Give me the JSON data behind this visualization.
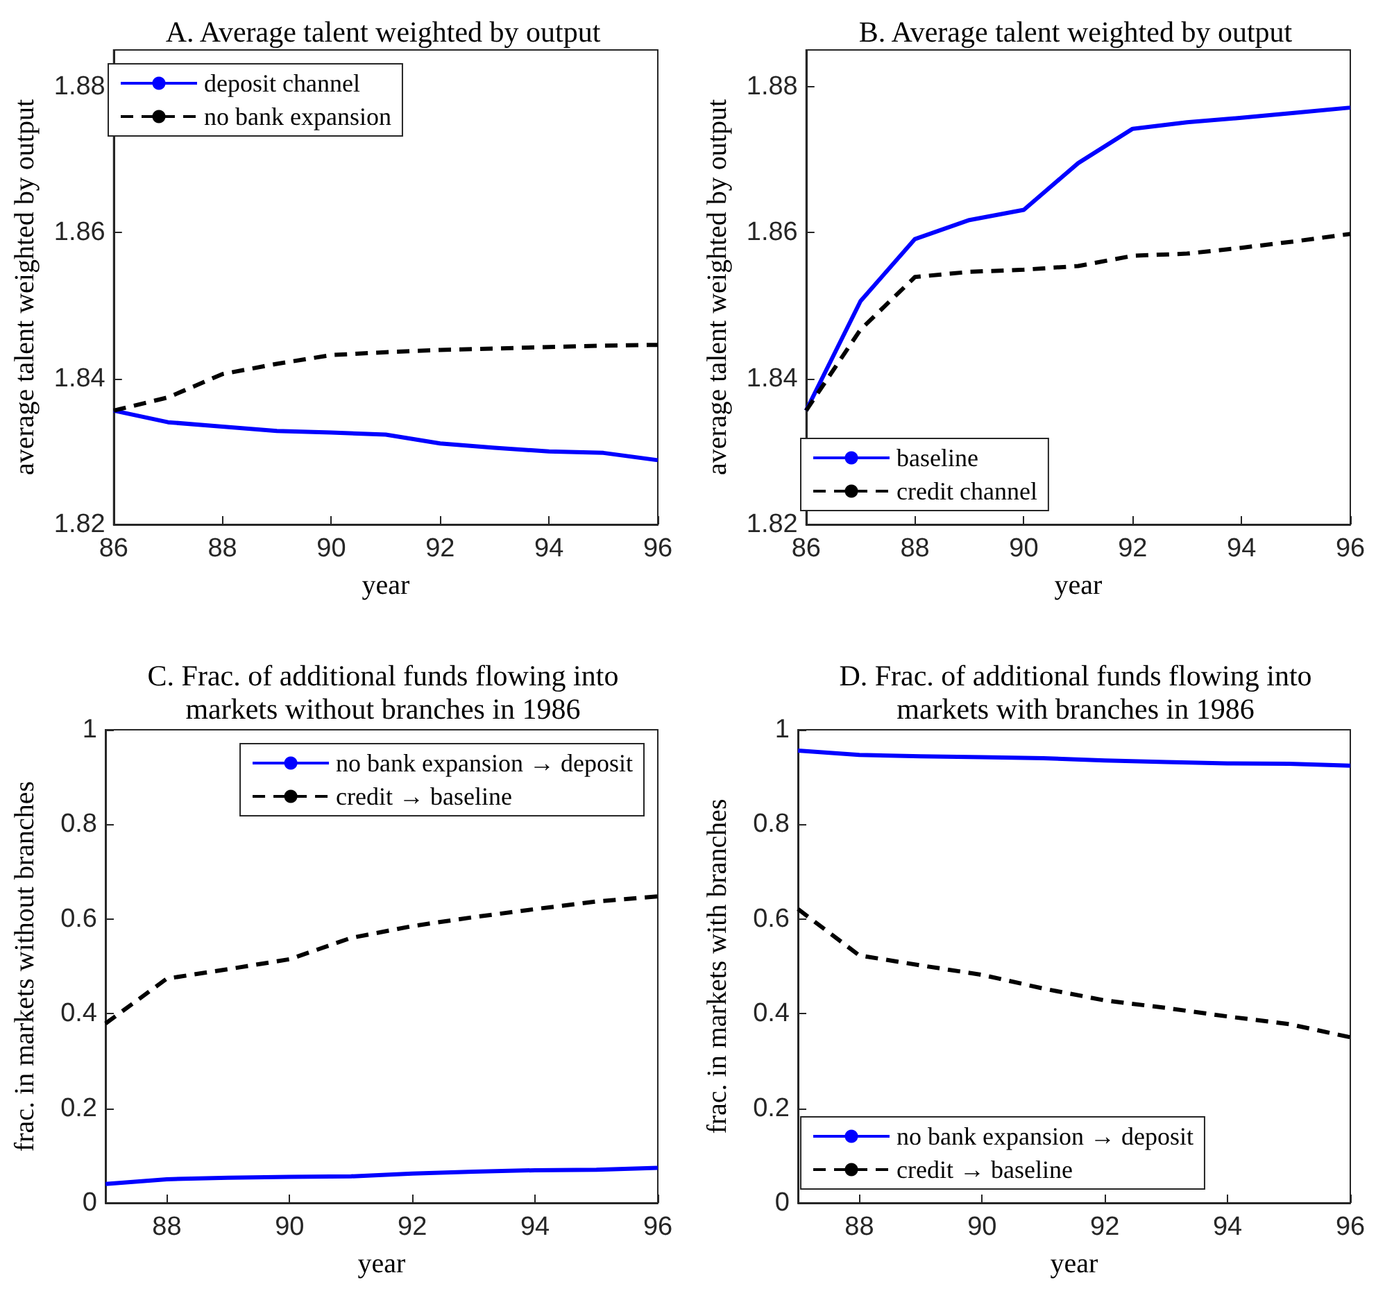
{
  "chart_data": [
    {
      "type": "line",
      "title": "A. Average talent weighted by output",
      "xlabel": "year",
      "ylabel": "average talent weighted by output",
      "x": [
        86,
        87,
        88,
        89,
        90,
        91,
        92,
        93,
        94,
        95,
        96
      ],
      "xlim": [
        86,
        96
      ],
      "xticks": [
        86,
        88,
        90,
        92,
        94,
        96
      ],
      "ylim": [
        1.82,
        1.885
      ],
      "yticks": [
        1.82,
        1.84,
        1.86,
        1.88
      ],
      "grid": false,
      "legend": "top left",
      "marker": "none",
      "series": [
        {
          "name": "deposit channel",
          "color": "#0000ff",
          "line_style": "solid",
          "values": [
            1.8356,
            1.834,
            1.8334,
            1.8328,
            1.8326,
            1.8323,
            1.8311,
            1.8305,
            1.83,
            1.8298,
            1.8288
          ]
        },
        {
          "name": "no bank expansion",
          "color": "#000000",
          "line_style": "dashed",
          "values": [
            1.8356,
            1.8374,
            1.8406,
            1.842,
            1.8432,
            1.8436,
            1.8439,
            1.8441,
            1.8443,
            1.8445,
            1.8446
          ]
        }
      ]
    },
    {
      "type": "line",
      "title": "B. Average talent weighted by output",
      "xlabel": "year",
      "ylabel": "average talent weighted by output",
      "x": [
        86,
        87,
        88,
        89,
        90,
        91,
        92,
        93,
        94,
        95,
        96
      ],
      "xlim": [
        86,
        96
      ],
      "xticks": [
        86,
        88,
        90,
        92,
        94,
        96
      ],
      "ylim": [
        1.82,
        1.885
      ],
      "yticks": [
        1.82,
        1.84,
        1.86,
        1.88
      ],
      "grid": false,
      "legend": "bottom left",
      "marker": "none",
      "series": [
        {
          "name": "baseline",
          "color": "#0000ff",
          "line_style": "solid",
          "values": [
            1.8356,
            1.8506,
            1.8591,
            1.8617,
            1.8631,
            1.8695,
            1.8742,
            1.8751,
            1.8757,
            1.8764,
            1.8771
          ]
        },
        {
          "name": "credit channel",
          "color": "#000000",
          "line_style": "dashed",
          "values": [
            1.8356,
            1.8467,
            1.8539,
            1.8546,
            1.8549,
            1.8554,
            1.8568,
            1.8571,
            1.8579,
            1.8588,
            1.8598
          ]
        }
      ]
    },
    {
      "type": "line",
      "title": "C. Frac. of additional funds flowing into\nmarkets without branches in 1986",
      "xlabel": "year",
      "ylabel": "frac. in markets without branches",
      "x": [
        87,
        88,
        89,
        90,
        91,
        92,
        93,
        94,
        95,
        96
      ],
      "xlim": [
        87,
        96
      ],
      "xticks": [
        88,
        90,
        92,
        94,
        96
      ],
      "ylim": [
        0,
        1
      ],
      "yticks": [
        0,
        0.2,
        0.4,
        0.6,
        0.8,
        1
      ],
      "grid": false,
      "legend": "top right",
      "marker": "none",
      "series": [
        {
          "name": "no bank expansion → deposit",
          "color": "#0000ff",
          "line_style": "solid",
          "values": [
            0.04,
            0.05,
            0.053,
            0.055,
            0.056,
            0.062,
            0.066,
            0.069,
            0.07,
            0.074
          ]
        },
        {
          "name": "credit → baseline",
          "color": "#000000",
          "line_style": "dashed",
          "values": [
            0.379,
            0.474,
            0.494,
            0.515,
            0.56,
            0.585,
            0.604,
            0.621,
            0.637,
            0.648
          ]
        }
      ]
    },
    {
      "type": "line",
      "title": "D. Frac. of additional funds flowing into\nmarkets with branches in 1986",
      "xlabel": "year",
      "ylabel": "frac. in markets with branches",
      "x": [
        87,
        88,
        89,
        90,
        91,
        92,
        93,
        94,
        95,
        96
      ],
      "xlim": [
        87,
        96
      ],
      "xticks": [
        88,
        90,
        92,
        94,
        96
      ],
      "ylim": [
        0,
        1
      ],
      "yticks": [
        0,
        0.2,
        0.4,
        0.6,
        0.8,
        1
      ],
      "grid": false,
      "legend": "bottom left",
      "marker": "none",
      "series": [
        {
          "name": "no bank expansion → deposit",
          "color": "#0000ff",
          "line_style": "solid",
          "values": [
            0.956,
            0.947,
            0.944,
            0.942,
            0.94,
            0.935,
            0.932,
            0.929,
            0.928,
            0.924
          ]
        },
        {
          "name": "credit → baseline",
          "color": "#000000",
          "line_style": "dashed",
          "values": [
            0.621,
            0.523,
            0.502,
            0.482,
            0.453,
            0.428,
            0.412,
            0.394,
            0.378,
            0.35
          ]
        }
      ]
    }
  ]
}
